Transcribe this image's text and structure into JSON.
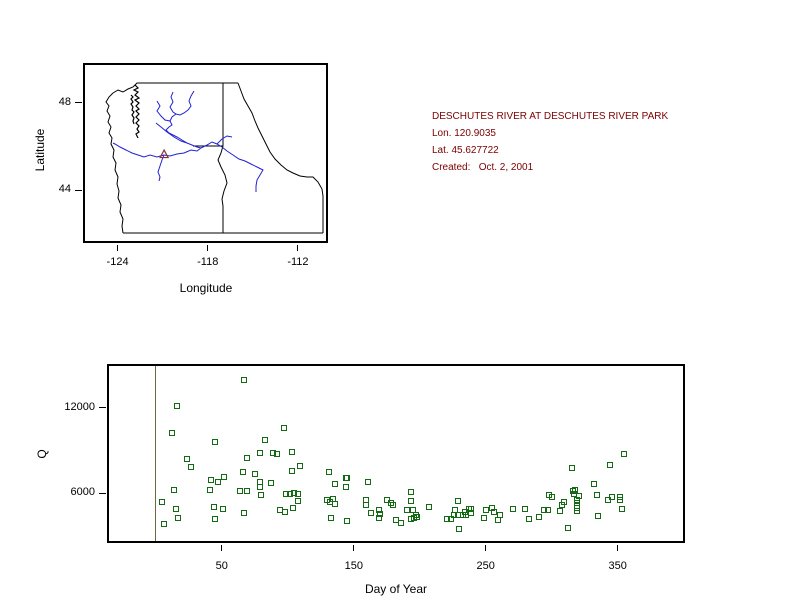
{
  "header": {
    "title": "DESCHUTES RIVER AT DESCHUTES RIVER PARK",
    "lon_line": "Lon. 120.9035",
    "lat_line": "Lat. 45.627722",
    "created_line": "Created:   Oct. 2, 2001",
    "color": "#7B0000"
  },
  "map": {
    "xlabel": "Longitude",
    "ylabel": "Latitude",
    "x_ticks": [
      -124,
      -118,
      -112
    ],
    "y_ticks": [
      48,
      44
    ],
    "lon_range": [
      -126.3,
      -110.0
    ],
    "lat_range": [
      41.6,
      49.8
    ],
    "station": {
      "lon": -120.9035,
      "lat": 45.627722,
      "marker": "triangle-open",
      "color": "#8B3333"
    },
    "river_color": "#2020D6",
    "border_color": "#000000"
  },
  "chart_data": {
    "type": "scatter",
    "title": "",
    "xlabel": "Day of Year",
    "ylabel": "Q",
    "x_ticks": [
      50,
      150,
      250,
      350
    ],
    "y_ticks": [
      6000,
      12000
    ],
    "xlim": [
      -37,
      401
    ],
    "ylim": [
      2500,
      15050
    ],
    "grid": false,
    "legend": "none",
    "marker": {
      "shape": "square-open",
      "color": "#146A14",
      "size": 6
    },
    "vline": {
      "x": 0,
      "color": "#6B6B3B"
    },
    "points": [
      [
        5,
        5390
      ],
      [
        6,
        3810
      ],
      [
        12,
        10230
      ],
      [
        14,
        6230
      ],
      [
        15,
        4900
      ],
      [
        16,
        12080
      ],
      [
        17,
        4280
      ],
      [
        24,
        8370
      ],
      [
        27,
        7850
      ],
      [
        41,
        6230
      ],
      [
        42,
        6930
      ],
      [
        44,
        5040
      ],
      [
        45,
        9560
      ],
      [
        45,
        4180
      ],
      [
        47,
        6750
      ],
      [
        51,
        4880
      ],
      [
        52,
        7140
      ],
      [
        64,
        6120
      ],
      [
        66,
        7500
      ],
      [
        67,
        13900
      ],
      [
        67,
        4600
      ],
      [
        69,
        8460
      ],
      [
        69,
        6160
      ],
      [
        75,
        7310
      ],
      [
        79,
        8830
      ],
      [
        79,
        6790
      ],
      [
        79,
        6420
      ],
      [
        80,
        5840
      ],
      [
        83,
        9720
      ],
      [
        87,
        6680
      ],
      [
        89,
        8790
      ],
      [
        92,
        8740
      ],
      [
        94,
        4810
      ],
      [
        97,
        10560
      ],
      [
        98,
        4690
      ],
      [
        99,
        5910
      ],
      [
        102,
        5910
      ],
      [
        103,
        8860
      ],
      [
        103,
        7520
      ],
      [
        104,
        4970
      ],
      [
        105,
        6000
      ],
      [
        108,
        5950
      ],
      [
        108,
        5420
      ],
      [
        109,
        7920
      ],
      [
        130,
        5530
      ],
      [
        131,
        7450
      ],
      [
        132,
        5350
      ],
      [
        133,
        4250
      ],
      [
        134,
        5600
      ],
      [
        136,
        6610
      ],
      [
        136,
        5230
      ],
      [
        144,
        7070
      ],
      [
        144,
        6420
      ],
      [
        145,
        7070
      ],
      [
        145,
        4010
      ],
      [
        159,
        5530
      ],
      [
        159,
        5140
      ],
      [
        161,
        6790
      ],
      [
        163,
        4600
      ],
      [
        169,
        4790
      ],
      [
        169,
        4250
      ],
      [
        170,
        4510
      ],
      [
        175,
        5530
      ],
      [
        178,
        5320
      ],
      [
        180,
        5160
      ],
      [
        182,
        4110
      ],
      [
        186,
        3920
      ],
      [
        190,
        4790
      ],
      [
        193,
        6070
      ],
      [
        193,
        5440
      ],
      [
        193,
        4150
      ],
      [
        195,
        4810
      ],
      [
        196,
        4220
      ],
      [
        197,
        4480
      ],
      [
        198,
        4340
      ],
      [
        207,
        5000
      ],
      [
        221,
        4180
      ],
      [
        224,
        4200
      ],
      [
        226,
        4460
      ],
      [
        227,
        4810
      ],
      [
        229,
        5440
      ],
      [
        229,
        4460
      ],
      [
        230,
        3470
      ],
      [
        233,
        4460
      ],
      [
        234,
        4690
      ],
      [
        235,
        4460
      ],
      [
        237,
        4880
      ],
      [
        239,
        4880
      ],
      [
        239,
        4580
      ],
      [
        249,
        4270
      ],
      [
        250,
        4810
      ],
      [
        255,
        4930
      ],
      [
        256,
        4650
      ],
      [
        259,
        4110
      ],
      [
        261,
        4460
      ],
      [
        271,
        4860
      ],
      [
        280,
        4880
      ],
      [
        283,
        4200
      ],
      [
        290,
        4290
      ],
      [
        294,
        4830
      ],
      [
        297,
        4810
      ],
      [
        298,
        5860
      ],
      [
        300,
        5700
      ],
      [
        306,
        4740
      ],
      [
        308,
        5160
      ],
      [
        309,
        5390
      ],
      [
        312,
        3520
      ],
      [
        315,
        7780
      ],
      [
        316,
        6140
      ],
      [
        317,
        5910
      ],
      [
        318,
        6210
      ],
      [
        319,
        5490
      ],
      [
        319,
        5300
      ],
      [
        319,
        5110
      ],
      [
        319,
        4920
      ],
      [
        319,
        4740
      ],
      [
        321,
        5810
      ],
      [
        332,
        6610
      ],
      [
        334,
        5860
      ],
      [
        335,
        4410
      ],
      [
        343,
        5530
      ],
      [
        344,
        7960
      ],
      [
        346,
        5740
      ],
      [
        352,
        5700
      ],
      [
        352,
        5510
      ],
      [
        353,
        4860
      ],
      [
        355,
        8740
      ]
    ]
  }
}
